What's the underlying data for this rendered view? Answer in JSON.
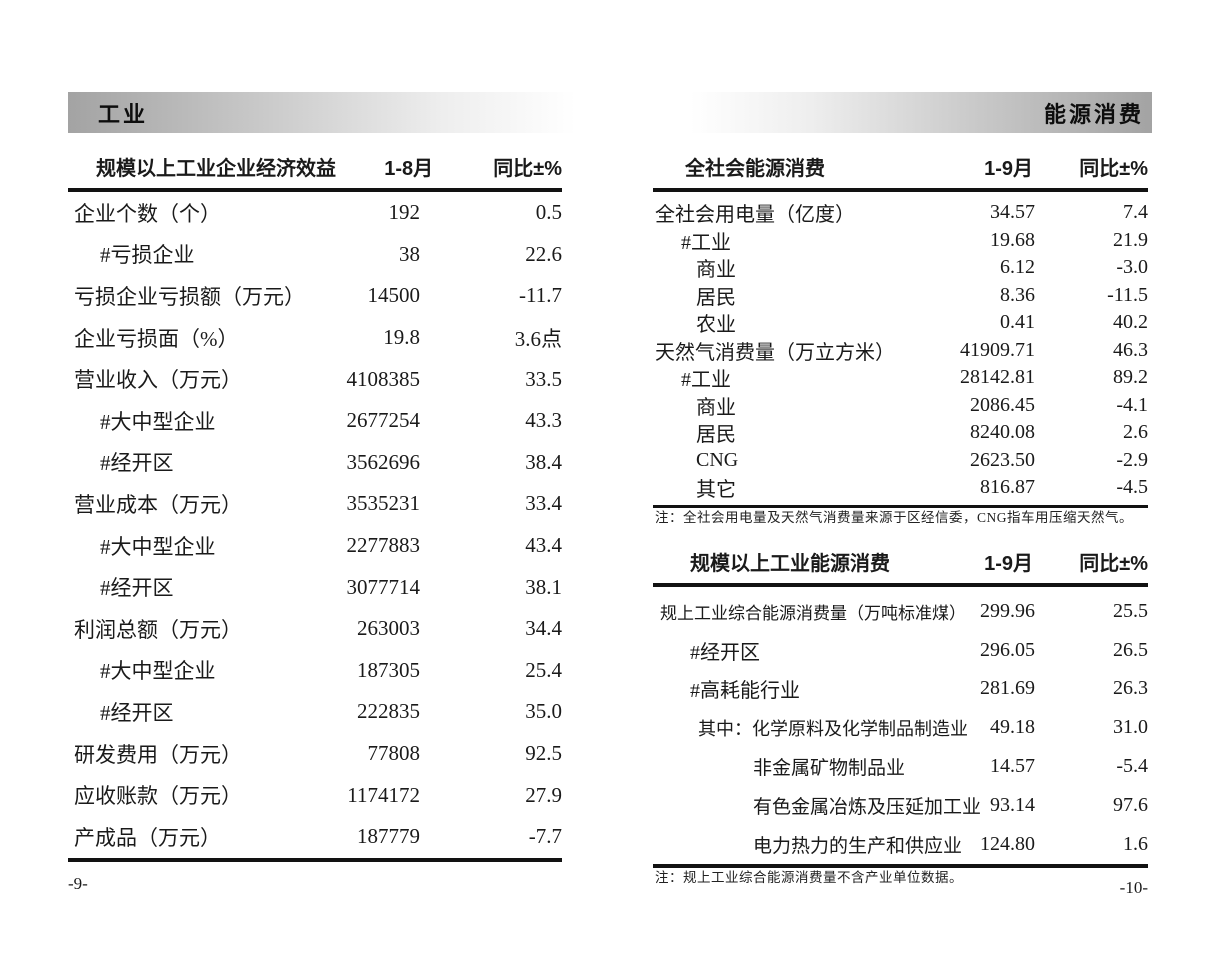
{
  "left_page": {
    "section_title": "工业",
    "page_number": "-9-",
    "table": {
      "header": {
        "label": "规模以上工业企业经济效益",
        "period": "1-8月",
        "yoy": "同比±%"
      },
      "rows": [
        {
          "label": "企业个数（个）",
          "indent": 0,
          "value": "192",
          "yoy": "0.5"
        },
        {
          "label": "#亏损企业",
          "indent": 1,
          "value": "38",
          "yoy": "22.6"
        },
        {
          "label": "亏损企业亏损额（万元）",
          "indent": 0,
          "value": "14500",
          "yoy": "-11.7"
        },
        {
          "label": "企业亏损面（%）",
          "indent": 0,
          "value": "19.8",
          "yoy": "3.6点"
        },
        {
          "label": "营业收入（万元）",
          "indent": 0,
          "value": "4108385",
          "yoy": "33.5"
        },
        {
          "label": "#大中型企业",
          "indent": 1,
          "value": "2677254",
          "yoy": "43.3"
        },
        {
          "label": "#经开区",
          "indent": 1,
          "value": "3562696",
          "yoy": "38.4"
        },
        {
          "label": "营业成本（万元）",
          "indent": 0,
          "value": "3535231",
          "yoy": "33.4"
        },
        {
          "label": "#大中型企业",
          "indent": 1,
          "value": "2277883",
          "yoy": "43.4"
        },
        {
          "label": "#经开区",
          "indent": 1,
          "value": "3077714",
          "yoy": "38.1"
        },
        {
          "label": "利润总额（万元）",
          "indent": 0,
          "value": "263003",
          "yoy": "34.4"
        },
        {
          "label": "#大中型企业",
          "indent": 1,
          "value": "187305",
          "yoy": "25.4"
        },
        {
          "label": "#经开区",
          "indent": 1,
          "value": "222835",
          "yoy": "35.0"
        },
        {
          "label": "研发费用（万元）",
          "indent": 0,
          "value": "77808",
          "yoy": "92.5"
        },
        {
          "label": "应收账款（万元）",
          "indent": 0,
          "value": "1174172",
          "yoy": "27.9"
        },
        {
          "label": "产成品（万元）",
          "indent": 0,
          "value": "187779",
          "yoy": "-7.7"
        }
      ]
    }
  },
  "right_page": {
    "section_title": "能源消费",
    "page_number": "-10-",
    "table1": {
      "header": {
        "label": "全社会能源消费",
        "period": "1-9月",
        "yoy": "同比±%"
      },
      "rows": [
        {
          "label": "全社会用电量（亿度）",
          "indent": 0,
          "value": "34.57",
          "yoy": "7.4"
        },
        {
          "label": "#工业",
          "indent": 1,
          "value": "19.68",
          "yoy": "21.9"
        },
        {
          "label": "商业",
          "indent": 2,
          "value": "6.12",
          "yoy": "-3.0"
        },
        {
          "label": "居民",
          "indent": 2,
          "value": "8.36",
          "yoy": "-11.5"
        },
        {
          "label": "农业",
          "indent": 2,
          "value": "0.41",
          "yoy": "40.2"
        },
        {
          "label": "天然气消费量（万立方米）",
          "indent": 0,
          "value": "41909.71",
          "yoy": "46.3"
        },
        {
          "label": "#工业",
          "indent": 1,
          "value": "28142.81",
          "yoy": "89.2"
        },
        {
          "label": "商业",
          "indent": 2,
          "value": "2086.45",
          "yoy": "-4.1"
        },
        {
          "label": "居民",
          "indent": 2,
          "value": "8240.08",
          "yoy": "2.6"
        },
        {
          "label": "CNG",
          "indent": 2,
          "value": "2623.50",
          "yoy": "-2.9"
        },
        {
          "label": "其它",
          "indent": 2,
          "value": "816.87",
          "yoy": "-4.5"
        }
      ],
      "note": "注：全社会用电量及天然气消费量来源于区经信委，CNG指车用压缩天然气。"
    },
    "table2": {
      "header": {
        "label": "规模以上工业能源消费",
        "period": "1-9月",
        "yoy": "同比±%"
      },
      "rows": [
        {
          "label": "规上工业综合能源消费量（万吨标准煤）",
          "indent": 0,
          "value": "299.96",
          "yoy": "25.5"
        },
        {
          "label": "#经开区",
          "indent": 1,
          "value": "296.05",
          "yoy": "26.5"
        },
        {
          "label": "#高耗能行业",
          "indent": 1,
          "value": "281.69",
          "yoy": "26.3"
        },
        {
          "label": "其中：化学原料及化学制品制造业",
          "indent": 2,
          "value": "49.18",
          "yoy": "31.0"
        },
        {
          "label": "非金属矿物制品业",
          "indent": 3,
          "value": "14.57",
          "yoy": "-5.4"
        },
        {
          "label": "有色金属冶炼及压延加工业",
          "indent": 3,
          "value": "93.14",
          "yoy": "97.6"
        },
        {
          "label": "电力热力的生产和供应业",
          "indent": 3,
          "value": "124.80",
          "yoy": "1.6"
        }
      ],
      "note": "注：规上工业综合能源消费量不含产业单位数据。"
    }
  }
}
